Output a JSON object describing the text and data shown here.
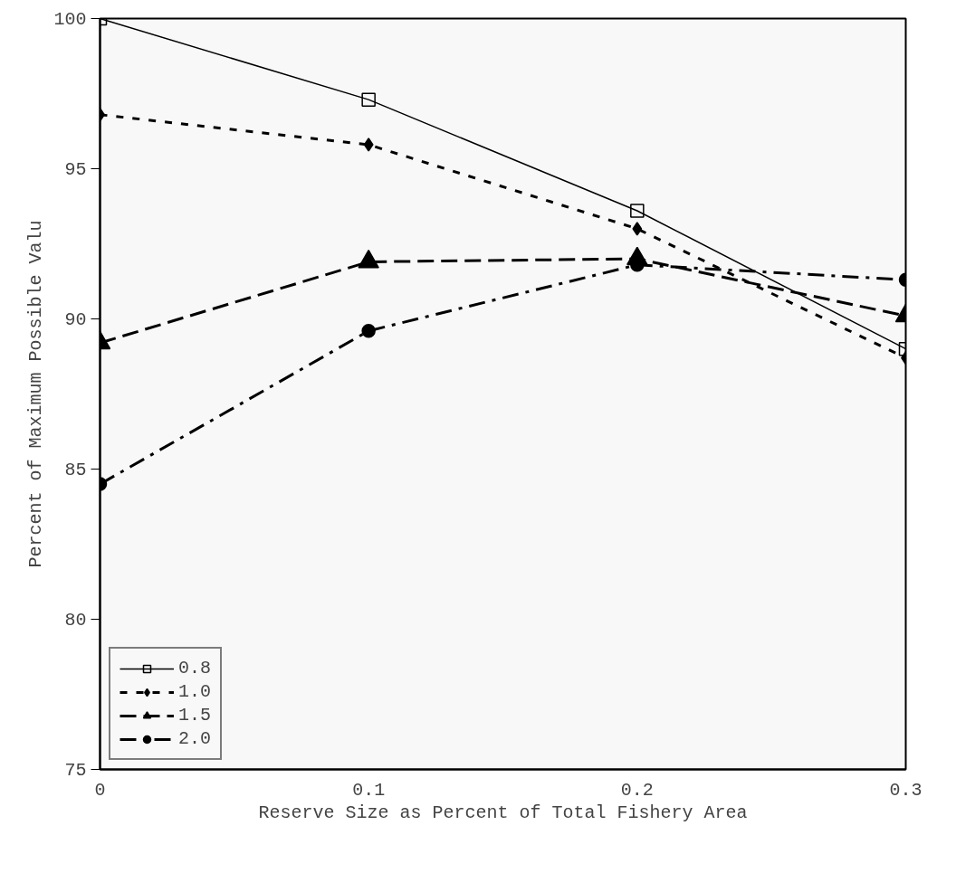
{
  "chart_data": {
    "type": "line",
    "xlabel": "Reserve Size as Percent of Total Fishery Area",
    "ylabel": "Percent of Maximum Possible Valu",
    "x": [
      0,
      0.1,
      0.2,
      0.3
    ],
    "xlim": [
      0,
      0.3
    ],
    "xticks": [
      0,
      0.1,
      0.2,
      0.3
    ],
    "ylim": [
      75,
      100
    ],
    "yticks": [
      75,
      80,
      85,
      90,
      95,
      100
    ],
    "grid": false,
    "legend": "bottom left",
    "series": [
      {
        "name": "0.8",
        "color": "#000000",
        "marker": "square",
        "line_style": "solid",
        "values": [
          100,
          97.3,
          93.6,
          89.0
        ]
      },
      {
        "name": "1.0",
        "color": "#000000",
        "marker": "diamond",
        "line_style": "dotted",
        "values": [
          96.8,
          95.8,
          93.0,
          88.7
        ]
      },
      {
        "name": "1.5",
        "color": "#000000",
        "marker": "triangle",
        "line_style": "dashed",
        "values": [
          89.2,
          91.9,
          92.0,
          90.1
        ]
      },
      {
        "name": "2.0",
        "color": "#000000",
        "marker": "circle",
        "line_style": "dashdot",
        "values": [
          84.5,
          89.6,
          91.8,
          91.3
        ]
      }
    ]
  }
}
